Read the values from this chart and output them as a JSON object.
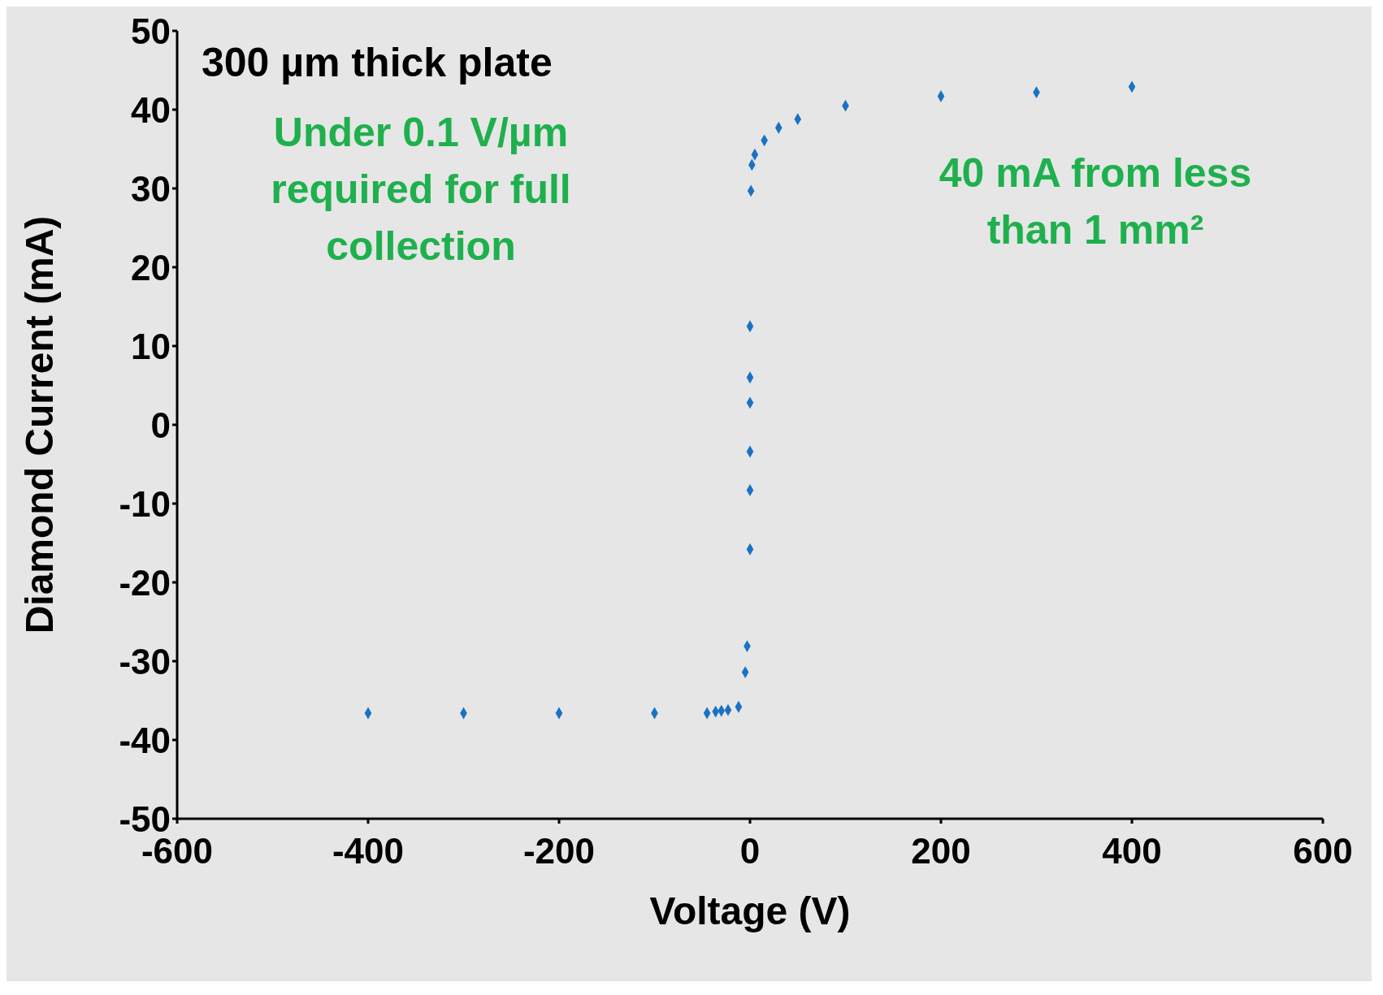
{
  "chart_data": {
    "type": "scatter",
    "title": "300 µm thick plate",
    "xlabel": "Voltage (V)",
    "ylabel": "Diamond Current (mA)",
    "annotations": [
      "Under 0.1 V/µm required for full collection",
      "40 mA from less than 1 mm²"
    ],
    "x": [
      -400,
      -300,
      -200,
      -100,
      -45,
      -36,
      -30,
      -23,
      -12,
      -5,
      -3,
      0,
      0,
      0,
      0,
      0,
      0,
      1,
      2,
      5,
      15,
      30,
      50,
      100,
      200,
      300,
      400
    ],
    "series": [
      {
        "color": "#1a72c4",
        "values": [
          -36.6,
          -36.6,
          -36.6,
          -36.6,
          -36.6,
          -36.4,
          -36.3,
          -36.2,
          -35.8,
          -31.4,
          -28.1,
          -15.8,
          -8.3,
          -3.4,
          2.8,
          6.0,
          12.5,
          29.7,
          33.0,
          34.3,
          36.1,
          37.7,
          38.8,
          40.5,
          41.7,
          42.2,
          42.9
        ]
      }
    ],
    "xlim": [
      -600,
      600
    ],
    "xticks": [
      -600,
      -400,
      -200,
      0,
      200,
      400,
      600
    ],
    "ylim": [
      -50,
      50
    ],
    "yticks": [
      -50,
      -40,
      -30,
      -20,
      -10,
      0,
      10,
      20,
      30,
      40,
      50
    ],
    "grid": false,
    "legend": false,
    "marker": "diamond"
  }
}
